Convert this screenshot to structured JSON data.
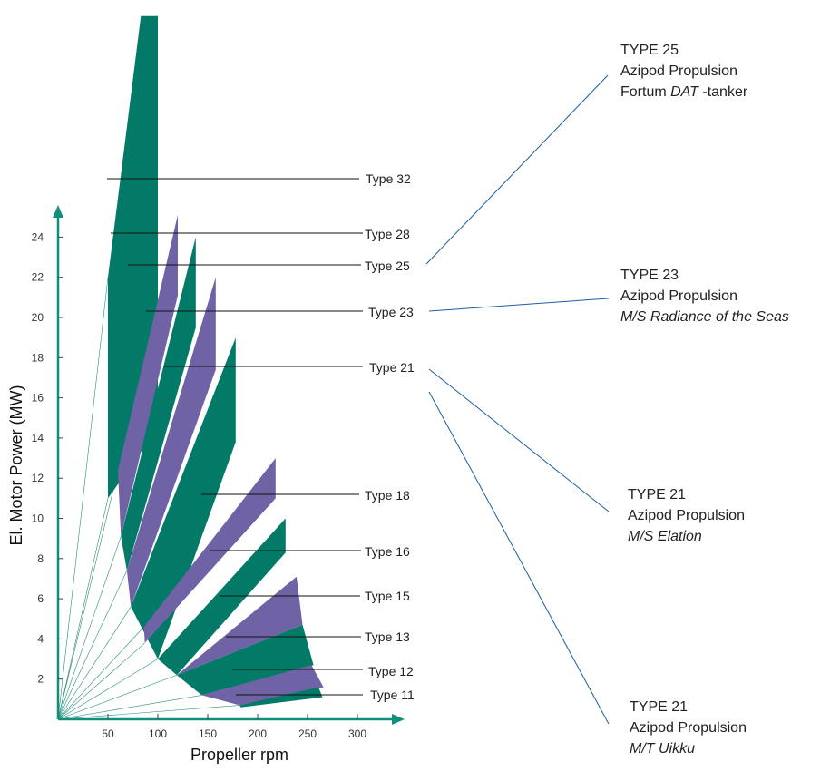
{
  "colors": {
    "green": "#037A68",
    "purple": "#6F63A6",
    "axis": "#10907C",
    "leader": "#1B5FA0",
    "ray": "#2A8C78"
  },
  "chart_data": {
    "type": "area",
    "title": "",
    "xlabel": "Propeller rpm",
    "ylabel": "El. Motor Power (MW)",
    "x_ticks": [
      50,
      100,
      150,
      200,
      250,
      300
    ],
    "y_ticks": [
      2,
      4,
      6,
      8,
      10,
      12,
      14,
      16,
      18,
      20,
      22,
      24
    ],
    "xlim": [
      0,
      330
    ],
    "ylim": [
      0,
      25.5
    ],
    "series": [
      {
        "name": "Type 32",
        "color": "green",
        "polygon": [
          [
            50,
            22
          ],
          [
            83,
            35
          ],
          [
            100,
            35
          ],
          [
            100,
            14.5
          ],
          [
            50,
            11
          ]
        ]
      },
      {
        "name": "Type 28",
        "color": "purple",
        "polygon": [
          [
            60,
            12.4
          ],
          [
            120,
            25.1
          ],
          [
            120,
            21.1
          ],
          [
            63,
            9.1
          ]
        ]
      },
      {
        "name": "Type 25",
        "color": "green",
        "polygon": [
          [
            63,
            9.1
          ],
          [
            138,
            24
          ],
          [
            138,
            19.5
          ],
          [
            69,
            7.4
          ]
        ]
      },
      {
        "name": "Type 23",
        "color": "purple",
        "polygon": [
          [
            69,
            7.4
          ],
          [
            158,
            22
          ],
          [
            158,
            17.4
          ],
          [
            73,
            5.6
          ]
        ]
      },
      {
        "name": "Type 21",
        "color": "green",
        "polygon": [
          [
            73,
            5.6
          ],
          [
            178,
            19
          ],
          [
            178,
            13.8
          ],
          [
            100,
            3
          ]
        ]
      },
      {
        "name": "Type 18",
        "color": "purple",
        "polygon": [
          [
            86,
            4.6
          ],
          [
            218,
            13
          ],
          [
            218,
            11
          ],
          [
            87,
            3.8
          ]
        ]
      },
      {
        "name": "Type 16",
        "color": "green",
        "polygon": [
          [
            100,
            3
          ],
          [
            228,
            10
          ],
          [
            228,
            8.3
          ],
          [
            119,
            2.2
          ]
        ]
      },
      {
        "name": "Type 15",
        "color": "purple",
        "polygon": [
          [
            119,
            2.2
          ],
          [
            239,
            7.1
          ],
          [
            245,
            4.7
          ]
        ]
      },
      {
        "name": "Type 13",
        "color": "green",
        "polygon": [
          [
            119,
            2.2
          ],
          [
            245,
            4.7
          ],
          [
            256,
            2.7
          ],
          [
            144,
            1.2
          ]
        ]
      },
      {
        "name": "Type 12",
        "color": "purple",
        "polygon": [
          [
            144,
            1.2
          ],
          [
            254,
            2.7
          ],
          [
            266,
            1.6
          ],
          [
            182,
            0.7
          ]
        ]
      },
      {
        "name": "Type 11",
        "color": "green",
        "polygon": [
          [
            182,
            0.7
          ],
          [
            261,
            1.6
          ],
          [
            265,
            1.1
          ],
          [
            183,
            0.6
          ]
        ]
      }
    ],
    "rays": [
      [
        50,
        22
      ],
      [
        50,
        11
      ],
      [
        60,
        12.4
      ],
      [
        63,
        9.1
      ],
      [
        69,
        7.4
      ],
      [
        73,
        5.6
      ],
      [
        86,
        4.6
      ],
      [
        87,
        3.8
      ],
      [
        100,
        3
      ],
      [
        119,
        2.2
      ],
      [
        144,
        1.2
      ],
      [
        182,
        0.7
      ]
    ],
    "type_labels": [
      {
        "text": "Type 32",
        "line": [
          [
            118,
            197
          ],
          [
            396,
            197
          ]
        ],
        "pos": [
          403,
          202
        ]
      },
      {
        "text": "Type 28",
        "line": [
          [
            122,
            257
          ],
          [
            400,
            257
          ]
        ],
        "pos": [
          402,
          263
        ]
      },
      {
        "text": "Type 25",
        "line": [
          [
            141,
            292
          ],
          [
            398,
            292
          ]
        ],
        "pos": [
          402,
          298
        ]
      },
      {
        "text": "Type 23",
        "line": [
          [
            161,
            343
          ],
          [
            400,
            343
          ]
        ],
        "pos": [
          406,
          349
        ]
      },
      {
        "text": "Type 21",
        "line": [
          [
            181,
            404
          ],
          [
            400,
            404
          ]
        ],
        "pos": [
          407,
          410
        ]
      },
      {
        "text": "Type 18",
        "line": [
          [
            222,
            545
          ],
          [
            396,
            545
          ]
        ],
        "pos": [
          402,
          551
        ]
      },
      {
        "text": "Type 16",
        "line": [
          [
            231,
            607
          ],
          [
            398,
            607
          ]
        ],
        "pos": [
          402,
          613
        ]
      },
      {
        "text": "Type 15",
        "line": [
          [
            242,
            657
          ],
          [
            397,
            657
          ]
        ],
        "pos": [
          402,
          662
        ]
      },
      {
        "text": "Type 13",
        "line": [
          [
            249,
            702
          ],
          [
            398,
            702
          ]
        ],
        "pos": [
          402,
          707
        ]
      },
      {
        "text": "Type 12",
        "line": [
          [
            256,
            738
          ],
          [
            400,
            738
          ]
        ],
        "pos": [
          406,
          745
        ]
      },
      {
        "text": "Type 11",
        "line": [
          [
            260,
            766
          ],
          [
            400,
            766
          ]
        ],
        "pos": [
          408,
          771
        ]
      }
    ],
    "annotations": [
      {
        "id": "t25",
        "lines": [
          "TYPE 25",
          "Azipod Propulsion",
          "Fortum "
        ],
        "italic": "DAT",
        "tail": " -tanker"
      },
      {
        "id": "t23",
        "lines": [
          "TYPE 23",
          "Azipod Propulsion"
        ],
        "italic_line": "M/S Radiance of the Seas"
      },
      {
        "id": "t21a",
        "lines": [
          "TYPE 21",
          "Azipod Propulsion"
        ],
        "italic_line": "M/S Elation"
      },
      {
        "id": "t21b",
        "lines": [
          "TYPE 21",
          "Azipod Propulsion"
        ],
        "italic_line": "M/T Uikku"
      }
    ],
    "grid": false,
    "legend": "none"
  }
}
